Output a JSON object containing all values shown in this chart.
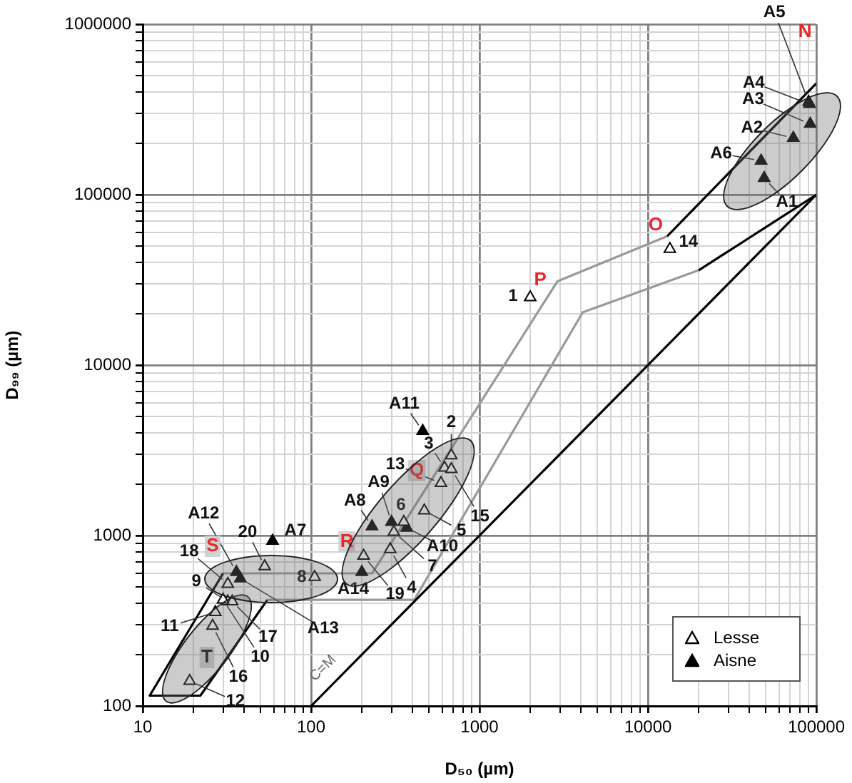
{
  "chart_data": {
    "type": "scatter",
    "xlabel": "D₅₀ (µm)",
    "ylabel": "D₉₉ (µm)",
    "log": "xy",
    "grid": true,
    "marker": "triangle",
    "legend": "bottom right",
    "xlim": [
      10,
      100000
    ],
    "ylim": [
      100,
      1000000
    ],
    "xticks": [
      10,
      {
        "value": 20,
        "label": null
      },
      {
        "value": 30,
        "label": null
      },
      {
        "value": 40,
        "label": null
      },
      {
        "value": 50,
        "label": null
      },
      {
        "value": 60,
        "label": null
      },
      {
        "value": 70,
        "label": null
      },
      {
        "value": 80,
        "label": null
      },
      {
        "value": 90,
        "label": null
      },
      100,
      {
        "value": 200,
        "label": null
      },
      {
        "value": 300,
        "label": null
      },
      {
        "value": 400,
        "label": null
      },
      {
        "value": 500,
        "label": null
      },
      {
        "value": 600,
        "label": null
      },
      {
        "value": 700,
        "label": null
      },
      {
        "value": 800,
        "label": null
      },
      {
        "value": 900,
        "label": null
      },
      1000,
      {
        "value": 2000,
        "label": null
      },
      {
        "value": 3000,
        "label": null
      },
      {
        "value": 4000,
        "label": null
      },
      {
        "value": 5000,
        "label": null
      },
      {
        "value": 6000,
        "label": null
      },
      {
        "value": 7000,
        "label": null
      },
      {
        "value": 8000,
        "label": null
      },
      {
        "value": 9000,
        "label": null
      },
      10000,
      {
        "value": 20000,
        "label": null
      },
      {
        "value": 30000,
        "label": null
      },
      {
        "value": 40000,
        "label": null
      },
      {
        "value": 50000,
        "label": null
      },
      {
        "value": 60000,
        "label": null
      },
      {
        "value": 70000,
        "label": null
      },
      {
        "value": 80000,
        "label": null
      },
      {
        "value": 90000,
        "label": null
      },
      100000
    ],
    "yticks": [
      100,
      {
        "value": 200,
        "label": null
      },
      {
        "value": 300,
        "label": null
      },
      {
        "value": 400,
        "label": null
      },
      {
        "value": 500,
        "label": null
      },
      {
        "value": 600,
        "label": null
      },
      {
        "value": 700,
        "label": null
      },
      {
        "value": 800,
        "label": null
      },
      {
        "value": 900,
        "label": null
      },
      1000,
      {
        "value": 2000,
        "label": null
      },
      {
        "value": 3000,
        "label": null
      },
      {
        "value": 4000,
        "label": null
      },
      {
        "value": 5000,
        "label": null
      },
      {
        "value": 6000,
        "label": null
      },
      {
        "value": 7000,
        "label": null
      },
      {
        "value": 8000,
        "label": null
      },
      {
        "value": 9000,
        "label": null
      },
      10000,
      {
        "value": 20000,
        "label": null
      },
      {
        "value": 30000,
        "label": null
      },
      {
        "value": 40000,
        "label": null
      },
      {
        "value": 50000,
        "label": null
      },
      {
        "value": 60000,
        "label": null
      },
      {
        "value": 70000,
        "label": null
      },
      {
        "value": 80000,
        "label": null
      },
      {
        "value": 90000,
        "label": null
      },
      100000,
      {
        "value": 200000,
        "label": null
      },
      {
        "value": 300000,
        "label": null
      },
      {
        "value": 400000,
        "label": null
      },
      {
        "value": 500000,
        "label": null
      },
      {
        "value": 600000,
        "label": null
      },
      {
        "value": 700000,
        "label": null
      },
      {
        "value": 800000,
        "label": null
      },
      {
        "value": 900000,
        "label": null
      },
      1000000
    ],
    "series": [
      {
        "name": "Lesse",
        "color": "#ffffff",
        "x": [
          2000,
          13500,
          680,
          620,
          680,
          590,
          470,
          355,
          310,
          295,
          205,
          105,
          53,
          32,
          32,
          34,
          30,
          27,
          26,
          19
        ],
        "values": [
          25000,
          48000,
          2950,
          2500,
          2450,
          2030,
          1400,
          1200,
          1050,
          830,
          760,
          570,
          660,
          520,
          410,
          410,
          420,
          355,
          295,
          140
        ]
      },
      {
        "name": "Aisne",
        "color": "#000000",
        "x": [
          49000,
          73000,
          92000,
          91000,
          47000,
          460,
          230,
          300,
          370,
          200,
          36,
          38,
          59,
          90000
        ],
        "values": [
          125000,
          215000,
          260000,
          340000,
          158000,
          4100,
          1130,
          1200,
          1110,
          610,
          610,
          560,
          930,
          350000
        ]
      },
      {
        "type": "line",
        "color": "#000000",
        "marker": "none",
        "x": [
          100,
          100000
        ],
        "values": [
          100,
          100000
        ]
      },
      {
        "type": "line",
        "color": "#000000",
        "marker": "none",
        "x": [
          30,
          11,
          22,
          55
        ],
        "values": [
          600,
          115,
          115,
          420
        ]
      },
      {
        "type": "line",
        "color": "#999999",
        "marker": "none",
        "x": [
          30,
          230,
          2900,
          13000
        ],
        "values": [
          600,
          600,
          31000,
          57000
        ]
      },
      {
        "type": "line",
        "color": "#999999",
        "marker": "none",
        "x": [
          55,
          410,
          4100,
          20000
        ],
        "values": [
          420,
          420,
          20400,
          36000
        ]
      },
      {
        "type": "line",
        "color": "#000000",
        "marker": "none",
        "x": [
          13000,
          100000
        ],
        "values": [
          57000,
          450000
        ]
      },
      {
        "type": "line",
        "color": "#000000",
        "marker": "none",
        "x": [
          20000,
          100000
        ],
        "values": [
          36000,
          100000
        ]
      }
    ],
    "annotations": [
      {
        "text": "1",
        "x": 2000,
        "y": 25000
      },
      {
        "text": "14",
        "x": 13500,
        "y": 48000
      },
      {
        "text": "2",
        "x": 680,
        "y": 2950
      },
      {
        "text": "3",
        "x": 620,
        "y": 2500
      },
      {
        "text": "15",
        "x": 680,
        "y": 2450
      },
      {
        "text": "13",
        "x": 590,
        "y": 2030
      },
      {
        "text": "5",
        "x": 470,
        "y": 1400
      },
      {
        "text": "6",
        "x": 355,
        "y": 1200
      },
      {
        "text": "7",
        "x": 310,
        "y": 1050
      },
      {
        "text": "4",
        "x": 295,
        "y": 830
      },
      {
        "text": "19",
        "x": 205,
        "y": 760
      },
      {
        "text": "8",
        "x": 105,
        "y": 570
      },
      {
        "text": "20",
        "x": 53,
        "y": 660
      },
      {
        "text": "18",
        "x": 32,
        "y": 520
      },
      {
        "text": "9",
        "x": 32,
        "y": 410
      },
      {
        "text": "17",
        "x": 34,
        "y": 410
      },
      {
        "text": "10",
        "x": 30,
        "y": 420
      },
      {
        "text": "11",
        "x": 27,
        "y": 355
      },
      {
        "text": "16",
        "x": 26,
        "y": 295
      },
      {
        "text": "12",
        "x": 19,
        "y": 140
      },
      {
        "text": "A1",
        "x": 49000,
        "y": 125000
      },
      {
        "text": "A2",
        "x": 73000,
        "y": 215000
      },
      {
        "text": "A3",
        "x": 92000,
        "y": 260000
      },
      {
        "text": "A4",
        "x": 91000,
        "y": 340000
      },
      {
        "text": "A6",
        "x": 47000,
        "y": 158000
      },
      {
        "text": "A11",
        "x": 460,
        "y": 4100
      },
      {
        "text": "A8",
        "x": 230,
        "y": 1130
      },
      {
        "text": "A9",
        "x": 300,
        "y": 1200
      },
      {
        "text": "A10",
        "x": 370,
        "y": 1110
      },
      {
        "text": "A14",
        "x": 200,
        "y": 610
      },
      {
        "text": "A12",
        "x": 36,
        "y": 610
      },
      {
        "text": "A13",
        "x": 38,
        "y": 560
      },
      {
        "text": "A7",
        "x": 59,
        "y": 930
      },
      {
        "text": "A5",
        "x": 90000,
        "y": 350000
      },
      {
        "text": "P",
        "x": 2900,
        "y": 31000
      },
      {
        "text": "O",
        "x": 13000,
        "y": 57000
      },
      {
        "text": "N",
        "x": 100000,
        "y": 450000
      },
      {
        "text": "C=M",
        "x": 140,
        "y": 140
      },
      "Q",
      "R",
      "S",
      "T"
    ]
  }
}
